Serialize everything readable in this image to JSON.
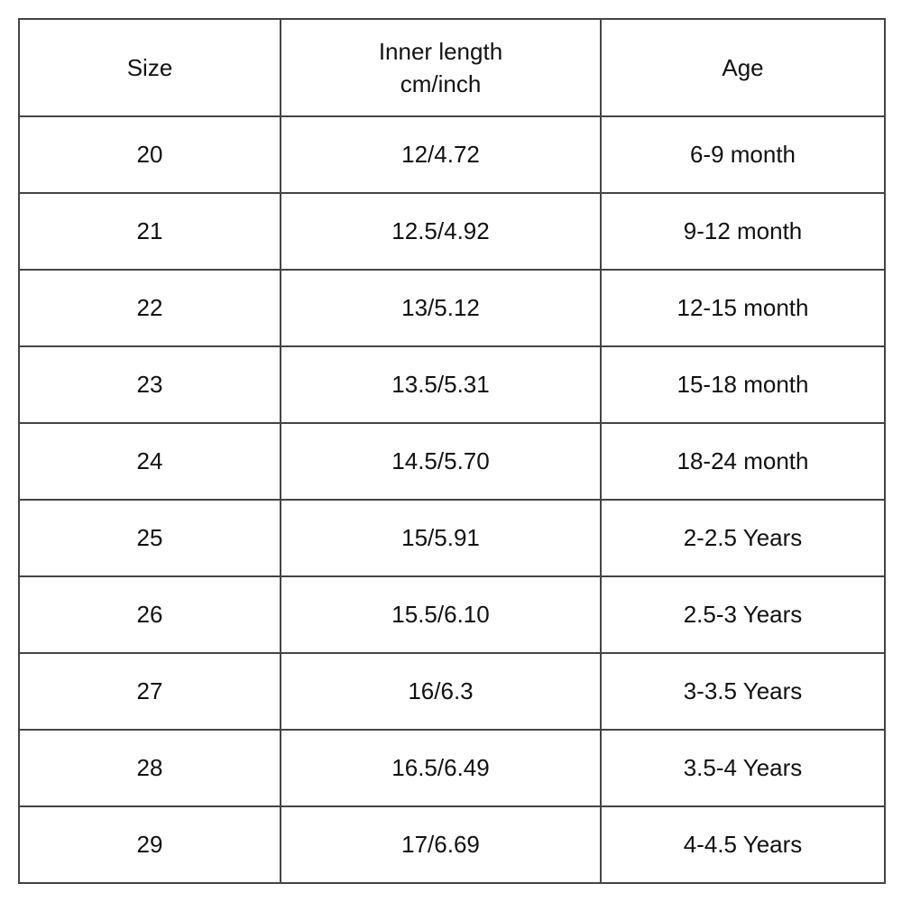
{
  "table": {
    "header": [
      "Size",
      [
        "Inner length",
        "cm/inch"
      ],
      "Age"
    ],
    "rows": [
      [
        "20",
        "12/4.72",
        "6-9 month"
      ],
      [
        "21",
        "12.5/4.92",
        "9-12 month"
      ],
      [
        "22",
        "13/5.12",
        "12-15 month"
      ],
      [
        "23",
        "13.5/5.31",
        "15-18 month"
      ],
      [
        "24",
        "14.5/5.70",
        "18-24 month"
      ],
      [
        "25",
        "15/5.91",
        "2-2.5 Years"
      ],
      [
        "26",
        "15.5/6.10",
        "2.5-3 Years"
      ],
      [
        "27",
        "16/6.3",
        "3-3.5 Years"
      ],
      [
        "28",
        "16.5/6.49",
        "3.5-4 Years"
      ],
      [
        "29",
        "17/6.69",
        "4-4.5 Years"
      ]
    ]
  }
}
